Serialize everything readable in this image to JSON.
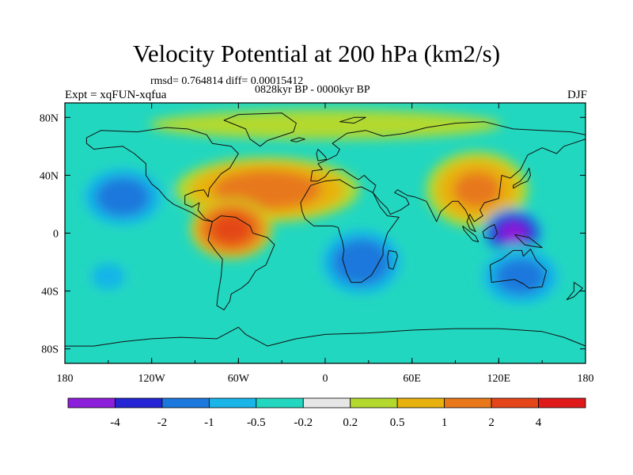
{
  "header": {
    "title": "Velocity Potential at 200 hPa (km2/s)",
    "stats": "rmsd= 0.764814 diff= 0.00015412",
    "period": "0828kyr BP - 0000kyr BP",
    "expt": "Expt = xqFUN-xqfua",
    "season": "DJF"
  },
  "chart_data": {
    "type": "heatmap",
    "title": "Velocity Potential at 200 hPa (km2/s)",
    "subtitle": "0828kyr BP - 0000kyr BP",
    "xlabel": "",
    "ylabel": "",
    "xlim": [
      -180,
      180
    ],
    "ylim": [
      -90,
      90
    ],
    "x_ticks": [
      {
        "value": -180,
        "label": "180"
      },
      {
        "value": -120,
        "label": "120W"
      },
      {
        "value": -60,
        "label": "60W"
      },
      {
        "value": 0,
        "label": "0"
      },
      {
        "value": 60,
        "label": "60E"
      },
      {
        "value": 120,
        "label": "120E"
      },
      {
        "value": 180,
        "label": "180"
      }
    ],
    "y_ticks": [
      {
        "value": 80,
        "label": "80N"
      },
      {
        "value": 40,
        "label": "40N"
      },
      {
        "value": 0,
        "label": "0"
      },
      {
        "value": -40,
        "label": "40S"
      },
      {
        "value": -80,
        "label": "80S"
      }
    ],
    "levels": [
      "-4",
      "-2",
      "-1",
      "-0.5",
      "-0.2",
      "0.2",
      "0.5",
      "1",
      "2",
      "4"
    ],
    "colors": [
      "#8c1fd9",
      "#2525d6",
      "#1c78dc",
      "#19b4e8",
      "#22d7c0",
      "#e6e6e6",
      "#b3d92e",
      "#e8b20e",
      "#e8781a",
      "#e44619",
      "#e01a1a"
    ],
    "background_class": -0.35,
    "features": [
      {
        "name": "west-pacific-dipole-negative",
        "lon": -140,
        "lat": 25,
        "rlon": 35,
        "rlat": 25,
        "value": -1.4
      },
      {
        "name": "north-atlantic-positive",
        "lon": -40,
        "lat": 30,
        "rlon": 70,
        "rlat": 25,
        "value": 1.4
      },
      {
        "name": "south-america-maximum",
        "lon": -65,
        "lat": 3,
        "rlon": 30,
        "rlat": 22,
        "value": 2.5
      },
      {
        "name": "africa-indian-ocean-negative",
        "lon": 25,
        "lat": -20,
        "rlon": 35,
        "rlat": 28,
        "value": -1.5
      },
      {
        "name": "asia-positive",
        "lon": 105,
        "lat": 30,
        "rlon": 40,
        "rlat": 30,
        "value": 1.1
      },
      {
        "name": "maritime-continent-minimum",
        "lon": 130,
        "lat": 0,
        "rlon": 22,
        "rlat": 18,
        "value": -4.5
      },
      {
        "name": "australia-negative",
        "lon": 135,
        "lat": -30,
        "rlon": 35,
        "rlat": 25,
        "value": -1.3
      },
      {
        "name": "south-pacific-negative",
        "lon": -150,
        "lat": -30,
        "rlon": 20,
        "rlat": 15,
        "value": -0.8
      },
      {
        "name": "arctic-positive",
        "lon": 0,
        "lat": 75,
        "rlon": 180,
        "rlat": 15,
        "value": 0.4
      }
    ]
  }
}
